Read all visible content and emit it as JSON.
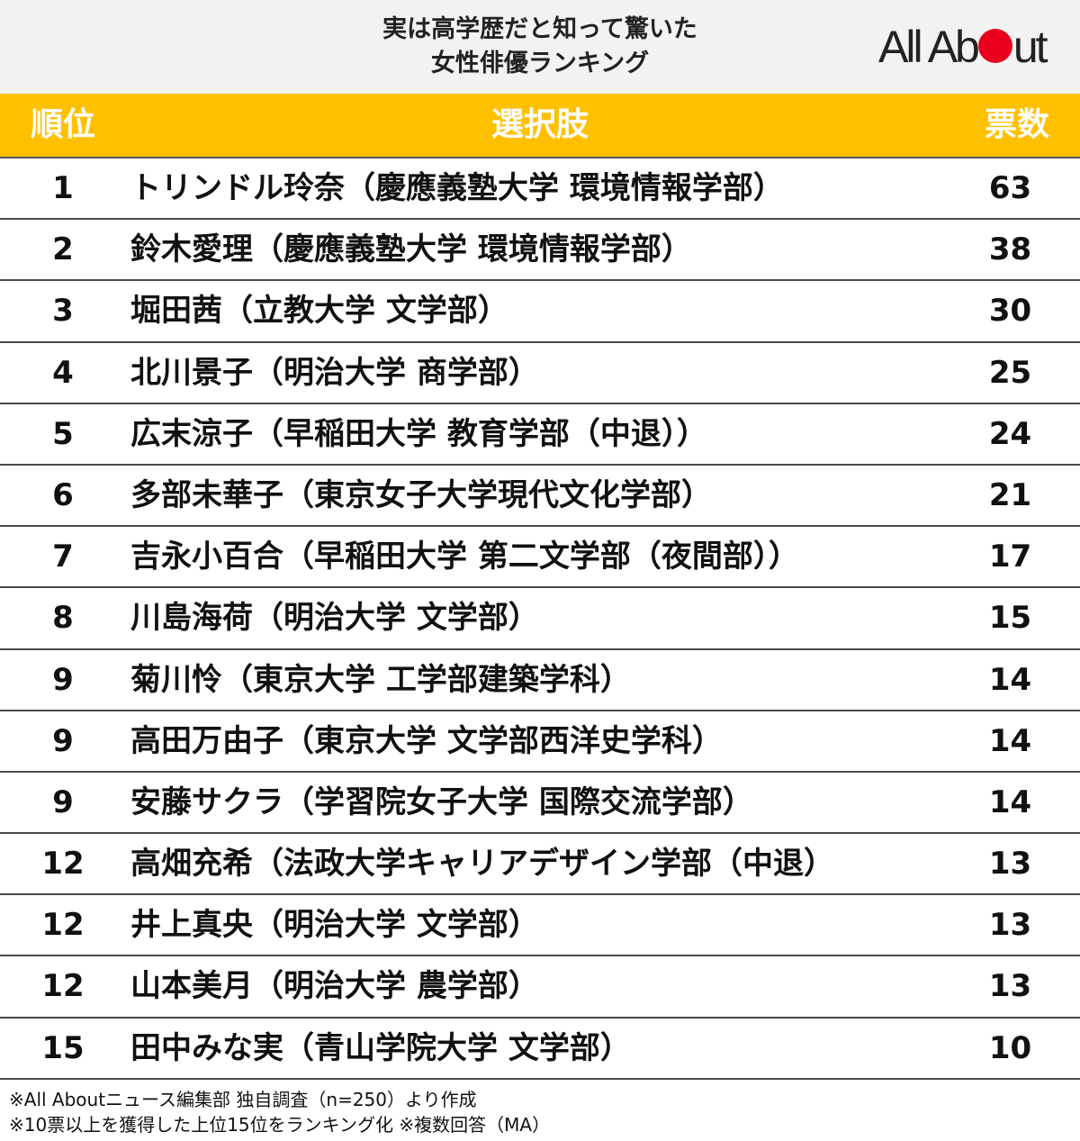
{
  "chart_data": {
    "type": "table",
    "title_lines": [
      "実は高学歴だと知って驚いた",
      "女性俳優ランキング"
    ],
    "brand": {
      "text_before": "All Ab",
      "text_after": "ut",
      "dot_color": "#e8001c"
    },
    "header_color": "#ffc000",
    "columns": [
      "順位",
      "選択肢",
      "票数"
    ],
    "rows": [
      {
        "rank": "1",
        "choice": "トリンドル玲奈（慶應義塾大学 環境情報学部）",
        "votes": 63
      },
      {
        "rank": "2",
        "choice": "鈴木愛理（慶應義塾大学 環境情報学部）",
        "votes": 38
      },
      {
        "rank": "3",
        "choice": "堀田茜（立教大学 文学部）",
        "votes": 30
      },
      {
        "rank": "4",
        "choice": "北川景子（明治大学 商学部）",
        "votes": 25
      },
      {
        "rank": "5",
        "choice": "広末涼子（早稲田大学 教育学部（中退））",
        "votes": 24
      },
      {
        "rank": "6",
        "choice": "多部未華子（東京女子大学現代文化学部）",
        "votes": 21
      },
      {
        "rank": "7",
        "choice": "吉永小百合（早稲田大学 第二文学部（夜間部））",
        "votes": 17
      },
      {
        "rank": "8",
        "choice": "川島海荷（明治大学 文学部）",
        "votes": 15
      },
      {
        "rank": "9",
        "choice": "菊川怜（東京大学 工学部建築学科）",
        "votes": 14
      },
      {
        "rank": "9",
        "choice": "高田万由子（東京大学 文学部西洋史学科）",
        "votes": 14
      },
      {
        "rank": "9",
        "choice": "安藤サクラ（学習院女子大学 国際交流学部）",
        "votes": 14
      },
      {
        "rank": "12",
        "choice": "高畑充希（法政大学キャリアデザイン学部（中退）",
        "votes": 13
      },
      {
        "rank": "12",
        "choice": "井上真央（明治大学 文学部）",
        "votes": 13
      },
      {
        "rank": "12",
        "choice": "山本美月（明治大学 農学部）",
        "votes": 13
      },
      {
        "rank": "15",
        "choice": "田中みな実（青山学院大学 文学部）",
        "votes": 10
      }
    ],
    "notes": [
      "※All Aboutニュース編集部 独自調査（n=250）より作成",
      "※10票以上を獲得した上位15位をランキング化 ※複数回答（MA）"
    ]
  }
}
